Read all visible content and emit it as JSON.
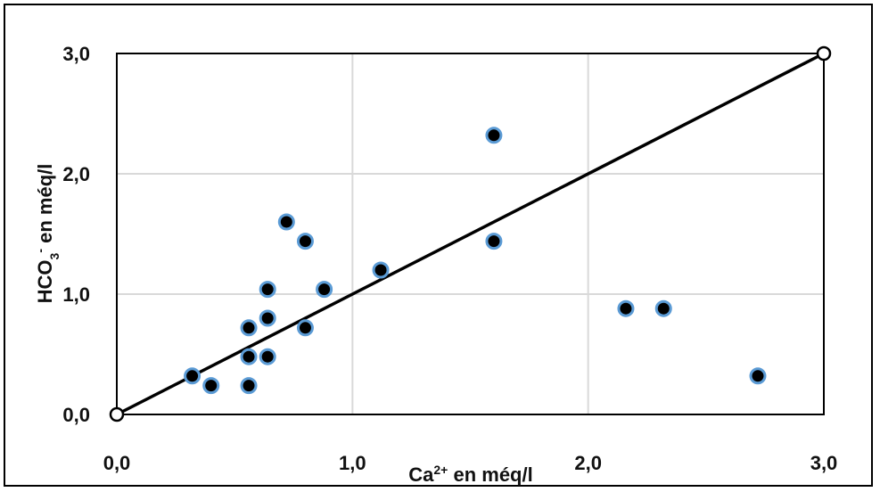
{
  "chart_data": {
    "type": "scatter",
    "title": "",
    "xlabel": {
      "base": "Ca",
      "sup": "2+",
      "rest": " en méq/l"
    },
    "ylabel": {
      "base": "HCO",
      "sub": "3",
      "sup": "-",
      "rest": " en méq/l"
    },
    "xlim": [
      0,
      3
    ],
    "ylim": [
      0,
      3
    ],
    "xticks": [
      0,
      1,
      2,
      3
    ],
    "yticks": [
      0,
      1,
      2,
      3
    ],
    "xtick_labels": [
      "0,0",
      "1,0",
      "2,0",
      "3,0"
    ],
    "ytick_labels": [
      "0,0",
      "1,0",
      "2,0",
      "3,0"
    ],
    "grid": true,
    "legend": "none",
    "points": [
      {
        "x": 0.32,
        "y": 0.32
      },
      {
        "x": 0.4,
        "y": 0.24
      },
      {
        "x": 0.56,
        "y": 0.24
      },
      {
        "x": 0.56,
        "y": 0.48
      },
      {
        "x": 0.56,
        "y": 0.72
      },
      {
        "x": 0.64,
        "y": 0.48
      },
      {
        "x": 0.64,
        "y": 0.8
      },
      {
        "x": 0.64,
        "y": 1.04
      },
      {
        "x": 0.72,
        "y": 1.6
      },
      {
        "x": 0.8,
        "y": 1.44
      },
      {
        "x": 0.8,
        "y": 0.72
      },
      {
        "x": 0.88,
        "y": 1.04
      },
      {
        "x": 1.12,
        "y": 1.2
      },
      {
        "x": 1.6,
        "y": 2.32
      },
      {
        "x": 1.6,
        "y": 1.44
      },
      {
        "x": 2.16,
        "y": 0.88
      },
      {
        "x": 2.32,
        "y": 0.88
      },
      {
        "x": 2.72,
        "y": 0.32
      }
    ],
    "reference_line": {
      "x": [
        0,
        3
      ],
      "y": [
        0,
        3
      ]
    },
    "colors": {
      "point_fill": "#000000",
      "point_edge": "#5b9bd5",
      "line": "#000000",
      "grid": "#d9d9d9"
    }
  }
}
